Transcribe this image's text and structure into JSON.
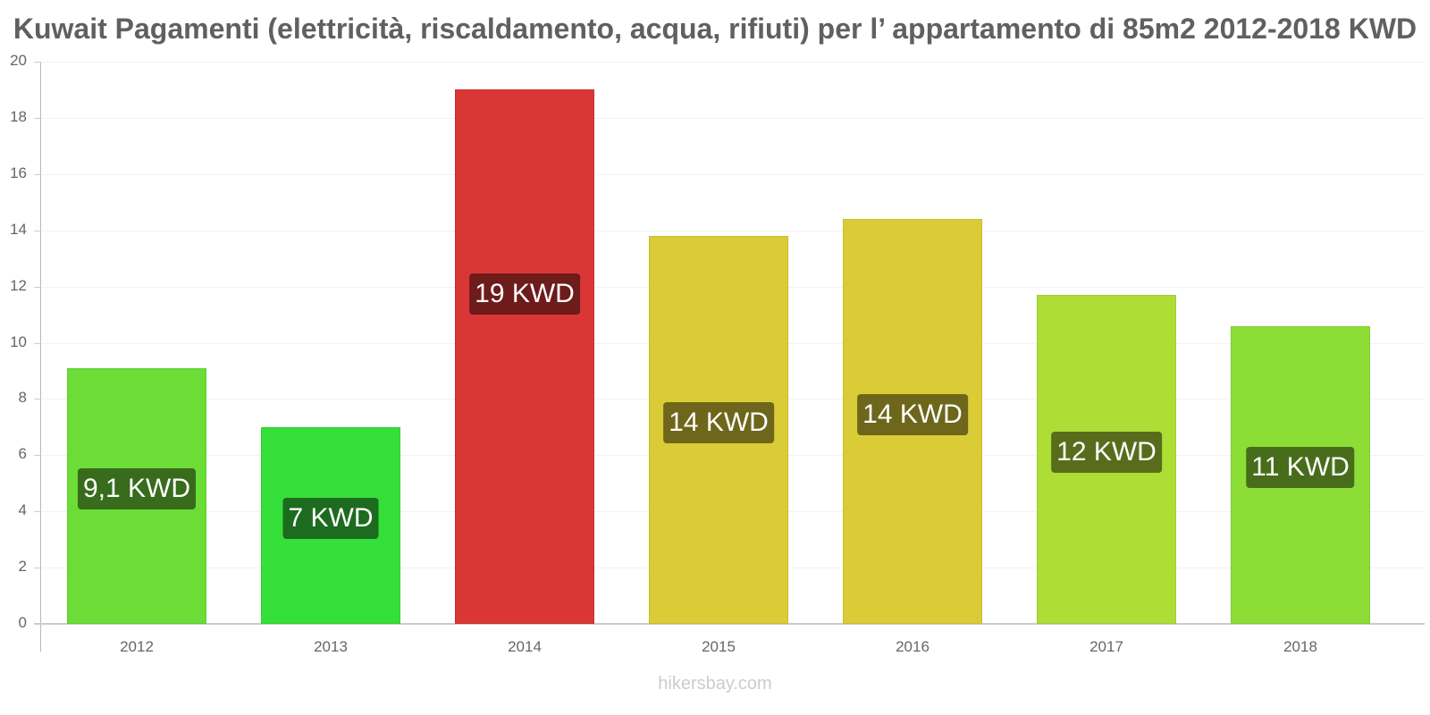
{
  "title": "Kuwait Pagamenti (elettricità, riscaldamento, acqua, rifiuti) per l’ appartamento di 85m2 2012-2018 KWD",
  "watermark": "hikersbay.com",
  "y_ticks": [
    "0",
    "2",
    "4",
    "6",
    "8",
    "10",
    "12",
    "14",
    "16",
    "18",
    "20"
  ],
  "bars": [
    {
      "year": "2012",
      "value": 9.1,
      "label": "9,1 KWD",
      "color": "#6bdd36",
      "label_bg": "#386b1c"
    },
    {
      "year": "2013",
      "value": 7.0,
      "label": "7 KWD",
      "color": "#35df39",
      "label_bg": "#1d6b1f"
    },
    {
      "year": "2014",
      "value": 19.0,
      "label": "19 KWD",
      "color": "#da3636",
      "label_bg": "#6d1b1b"
    },
    {
      "year": "2015",
      "value": 13.8,
      "label": "14 KWD",
      "color": "#dacc36",
      "label_bg": "#6d661b"
    },
    {
      "year": "2016",
      "value": 14.4,
      "label": "14 KWD",
      "color": "#dacc36",
      "label_bg": "#6d661b"
    },
    {
      "year": "2017",
      "value": 11.7,
      "label": "12 KWD",
      "color": "#aedd36",
      "label_bg": "#586d1b"
    },
    {
      "year": "2018",
      "value": 10.6,
      "label": "11 KWD",
      "color": "#8cdd36",
      "label_bg": "#476d1b"
    }
  ],
  "chart_data": {
    "type": "bar",
    "title": "Kuwait Pagamenti (elettricità, riscaldamento, acqua, rifiuti) per l’ appartamento di 85m2 2012-2018 KWD",
    "categories": [
      "2012",
      "2013",
      "2014",
      "2015",
      "2016",
      "2017",
      "2018"
    ],
    "values": [
      9.1,
      7.0,
      19.0,
      13.8,
      14.4,
      11.7,
      10.6
    ],
    "data_labels": [
      "9,1 KWD",
      "7 KWD",
      "19 KWD",
      "14 KWD",
      "14 KWD",
      "12 KWD",
      "11 KWD"
    ],
    "xlabel": "",
    "ylabel": "",
    "ylim": [
      0,
      20
    ],
    "yticks": [
      0,
      2,
      4,
      6,
      8,
      10,
      12,
      14,
      16,
      18,
      20
    ],
    "grid": true,
    "legend": "none"
  }
}
